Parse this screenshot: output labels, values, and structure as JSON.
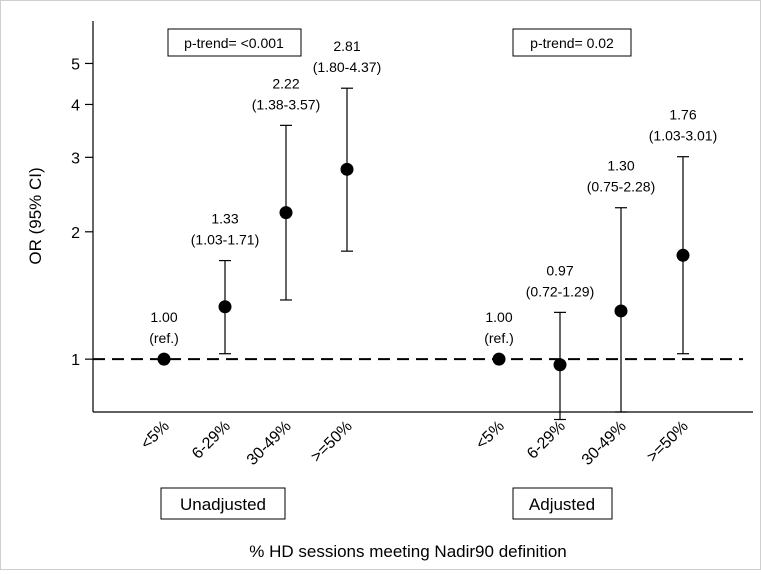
{
  "chart_data": {
    "type": "scatter",
    "subtype": "odds-ratio-with-95ci",
    "y_scale": "log",
    "ylim": [
      0.75,
      6.3
    ],
    "ylabel": "OR (95% CI)",
    "xlabel": "% HD sessions meeting Nadir90 definition",
    "yticks": [
      1,
      2,
      3,
      4,
      5
    ],
    "reference_line": {
      "y": 1,
      "style": "dashed"
    },
    "grid": false,
    "groups": [
      {
        "name": "Unadjusted",
        "p_trend": "p-trend= <0.001",
        "categories": [
          "<5%",
          "6-29%",
          "30-49%",
          ">=50%"
        ],
        "points": [
          {
            "category": "<5%",
            "or": 1.0,
            "lo": null,
            "hi": null,
            "label_top": "1.00",
            "label_bottom": "(ref.)"
          },
          {
            "category": "6-29%",
            "or": 1.33,
            "lo": 1.03,
            "hi": 1.71,
            "label_top": "1.33",
            "label_bottom": "(1.03-1.71)"
          },
          {
            "category": "30-49%",
            "or": 2.22,
            "lo": 1.38,
            "hi": 3.57,
            "label_top": "2.22",
            "label_bottom": "(1.38-3.57)"
          },
          {
            "category": ">=50%",
            "or": 2.81,
            "lo": 1.8,
            "hi": 4.37,
            "label_top": "2.81",
            "label_bottom": "(1.80-4.37)"
          }
        ]
      },
      {
        "name": "Adjusted",
        "p_trend": "p-trend= 0.02",
        "categories": [
          "<5%",
          "6-29%",
          "30-49%",
          ">=50%"
        ],
        "points": [
          {
            "category": "<5%",
            "or": 1.0,
            "lo": null,
            "hi": null,
            "label_top": "1.00",
            "label_bottom": "(ref.)"
          },
          {
            "category": "6-29%",
            "or": 0.97,
            "lo": 0.72,
            "hi": 1.29,
            "label_top": "0.97",
            "label_bottom": "(0.72-1.29)"
          },
          {
            "category": "30-49%",
            "or": 1.3,
            "lo": 0.75,
            "hi": 2.28,
            "label_top": "1.30",
            "label_bottom": "(0.75-2.28)"
          },
          {
            "category": ">=50%",
            "or": 1.76,
            "lo": 1.03,
            "hi": 3.01,
            "label_top": "1.76",
            "label_bottom": "(1.03-3.01)"
          }
        ]
      }
    ]
  }
}
